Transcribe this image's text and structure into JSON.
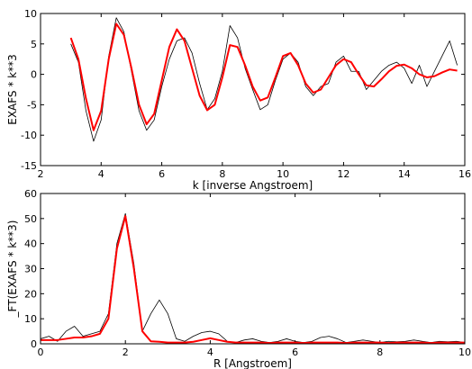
{
  "chart_data": [
    {
      "type": "line",
      "xlabel": "k [inverse Angstroem]",
      "ylabel": "EXAFS * k**3",
      "xlim": [
        2,
        16
      ],
      "ylim": [
        -15,
        10
      ],
      "xticks": [
        2,
        4,
        6,
        8,
        10,
        12,
        14,
        16
      ],
      "yticks": [
        -15,
        -10,
        -5,
        0,
        5,
        10
      ],
      "x": [
        3.0,
        3.25,
        3.5,
        3.75,
        4.0,
        4.25,
        4.5,
        4.75,
        5.0,
        5.25,
        5.5,
        5.75,
        6.0,
        6.25,
        6.5,
        6.75,
        7.0,
        7.25,
        7.5,
        7.75,
        8.0,
        8.25,
        8.5,
        8.75,
        9.0,
        9.25,
        9.5,
        9.75,
        10.0,
        10.25,
        10.5,
        10.75,
        11.0,
        11.25,
        11.5,
        11.75,
        12.0,
        12.25,
        12.5,
        12.75,
        13.0,
        13.25,
        13.5,
        13.75,
        14.0,
        14.25,
        14.5,
        14.75,
        15.0,
        15.25,
        15.5,
        15.75
      ],
      "series": [
        {
          "color": "#000000",
          "values": [
            5.0,
            2.0,
            -6,
            -11,
            -7.5,
            3,
            9.3,
            7,
            0.5,
            -6,
            -9.2,
            -7.5,
            -2,
            2.5,
            5.5,
            6.0,
            3.5,
            -1.5,
            -5.8,
            -4.0,
            0.5,
            8.0,
            6.0,
            1.0,
            -2.5,
            -5.8,
            -5.0,
            -1.0,
            2.5,
            3.5,
            2.0,
            -2.0,
            -3.5,
            -2.0,
            -1.5,
            2.0,
            3.0,
            0.5,
            0.5,
            -2.5,
            -1.0,
            0.5,
            1.5,
            2.0,
            1.0,
            -1.5,
            1.5,
            -2.0,
            0.5,
            3.0,
            5.5,
            1.5
          ]
        },
        {
          "color": "#ff0000",
          "values": [
            6.0,
            2.5,
            -4.0,
            -9.2,
            -6.0,
            2.5,
            8.3,
            6.5,
            1.0,
            -5.0,
            -8.2,
            -6.5,
            -1.0,
            4.5,
            7.4,
            5.5,
            1.0,
            -3.5,
            -5.9,
            -5.0,
            -0.5,
            4.8,
            4.5,
            1.5,
            -2.0,
            -4.3,
            -3.8,
            -0.5,
            3.0,
            3.5,
            1.5,
            -1.5,
            -3.0,
            -2.5,
            -0.5,
            1.5,
            2.5,
            2.0,
            0.0,
            -1.8,
            -2.0,
            -0.8,
            0.5,
            1.4,
            1.6,
            1.0,
            0.0,
            -0.5,
            -0.3,
            0.3,
            0.8,
            0.6
          ]
        }
      ]
    },
    {
      "type": "line",
      "xlabel": "R [Angstroem]",
      "ylabel": "_FT(EXAFS * k**3)",
      "xlim": [
        0,
        10
      ],
      "ylim": [
        0,
        60
      ],
      "xticks": [
        0,
        2,
        4,
        6,
        8,
        10
      ],
      "yticks": [
        0,
        10,
        20,
        30,
        40,
        50,
        60
      ],
      "x": [
        0,
        0.2,
        0.4,
        0.6,
        0.8,
        1.0,
        1.2,
        1.4,
        1.6,
        1.8,
        2.0,
        2.2,
        2.4,
        2.6,
        2.8,
        3.0,
        3.2,
        3.4,
        3.6,
        3.8,
        4.0,
        4.2,
        4.4,
        4.6,
        4.8,
        5.0,
        5.2,
        5.4,
        5.6,
        5.8,
        6.0,
        6.2,
        6.4,
        6.6,
        6.8,
        7.0,
        7.2,
        7.4,
        7.6,
        7.8,
        8.0,
        8.2,
        8.4,
        8.6,
        8.8,
        9.0,
        9.2,
        9.4,
        9.6,
        9.8,
        10.0
      ],
      "series": [
        {
          "color": "#000000",
          "values": [
            2,
            3,
            1,
            5,
            7,
            3,
            4,
            5,
            12,
            40,
            52,
            32,
            5,
            12,
            17.5,
            12,
            2,
            1,
            3,
            4.5,
            5,
            4,
            1,
            0.5,
            1.5,
            2,
            1,
            0.5,
            1,
            2,
            1,
            0.5,
            1,
            2.5,
            3,
            2,
            0.5,
            1,
            1.5,
            1,
            0.5,
            1,
            0.8,
            1,
            1.5,
            1,
            0.5,
            1,
            0.8,
            1,
            0.5
          ]
        },
        {
          "color": "#ff0000",
          "values": [
            1.5,
            1.5,
            1.5,
            2,
            2.5,
            2.5,
            3,
            4,
            10,
            38,
            51,
            30,
            5,
            1,
            0.8,
            0.5,
            0.5,
            0.5,
            0.8,
            1.5,
            2.2,
            1.5,
            0.8,
            0.5,
            0.5,
            0.5,
            0.5,
            0.3,
            0.5,
            0.5,
            0.5,
            0.3,
            0.5,
            0.5,
            0.5,
            0.5,
            0.3,
            0.5,
            0.5,
            0.5,
            0.5,
            0.3,
            0.5,
            0.5,
            0.5,
            0.5,
            0.3,
            0.5,
            0.5,
            0.5,
            0.5
          ]
        }
      ]
    }
  ]
}
